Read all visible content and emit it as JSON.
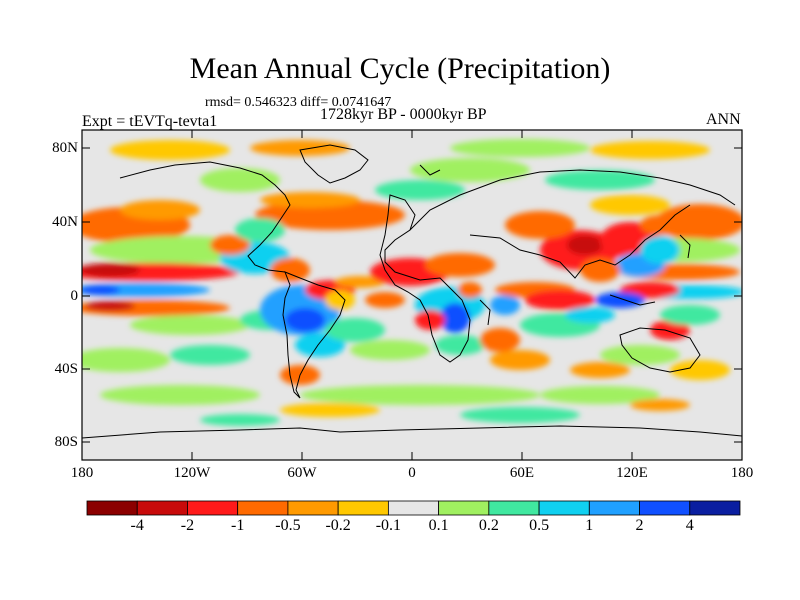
{
  "title": "Mean Annual Cycle (Precipitation)",
  "stats": "rmsd= 0.546323  diff= 0.0741647",
  "period": "1728kyr BP - 0000kyr BP",
  "experiment": "Expt = tEVTq-tevta1",
  "season": "ANN",
  "lat_labels": [
    "80N",
    "40N",
    "0",
    "40S",
    "80S"
  ],
  "lon_labels": [
    "180",
    "120W",
    "60W",
    "0",
    "60E",
    "120E",
    "180"
  ],
  "colorbar": {
    "labels": [
      "-4",
      "-2",
      "-1",
      "-0.5",
      "-0.2",
      "-0.1",
      "0.1",
      "0.2",
      "0.5",
      "1",
      "2",
      "4"
    ],
    "colors": [
      "#8b0000",
      "#c80a0a",
      "#ff1a1a",
      "#ff6a00",
      "#ff9a00",
      "#ffc800",
      "#e6e6e6",
      "#a0f060",
      "#40e8a0",
      "#10d0f0",
      "#20a0ff",
      "#1050ff",
      "#0a1ea0"
    ]
  },
  "palette": {
    "land_bg": "#e6e6e6",
    "coast": "#000000"
  }
}
